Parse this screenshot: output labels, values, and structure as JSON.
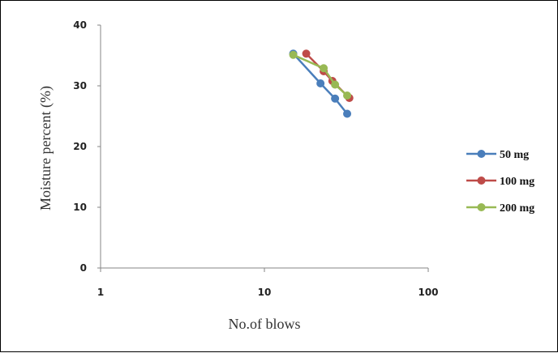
{
  "chart_data": {
    "type": "line",
    "title": "",
    "xlabel": "No.of blows",
    "ylabel": "Moisture percent (%)",
    "x_scale": "log",
    "xlim": [
      1,
      100
    ],
    "ylim": [
      0,
      40
    ],
    "x_ticks": [
      "1",
      "10",
      "100"
    ],
    "y_ticks": [
      "0",
      "10",
      "20",
      "30",
      "40"
    ],
    "grid": false,
    "legend_position": "right",
    "series": [
      {
        "name": "50 mg",
        "color": "#4a7ebb",
        "points": [
          {
            "x": 15,
            "y": 35.3
          },
          {
            "x": 22,
            "y": 30.4
          },
          {
            "x": 27,
            "y": 27.9
          },
          {
            "x": 32,
            "y": 25.4
          }
        ]
      },
      {
        "name": "100 mg",
        "color": "#be4b48",
        "points": [
          {
            "x": 18,
            "y": 35.3
          },
          {
            "x": 23,
            "y": 32.4
          },
          {
            "x": 26,
            "y": 30.8
          },
          {
            "x": 33,
            "y": 28.0
          }
        ]
      },
      {
        "name": "200 mg",
        "color": "#98b954",
        "points": [
          {
            "x": 15,
            "y": 35.1
          },
          {
            "x": 23,
            "y": 32.9
          },
          {
            "x": 27,
            "y": 30.2
          },
          {
            "x": 32,
            "y": 28.4
          }
        ]
      }
    ]
  }
}
